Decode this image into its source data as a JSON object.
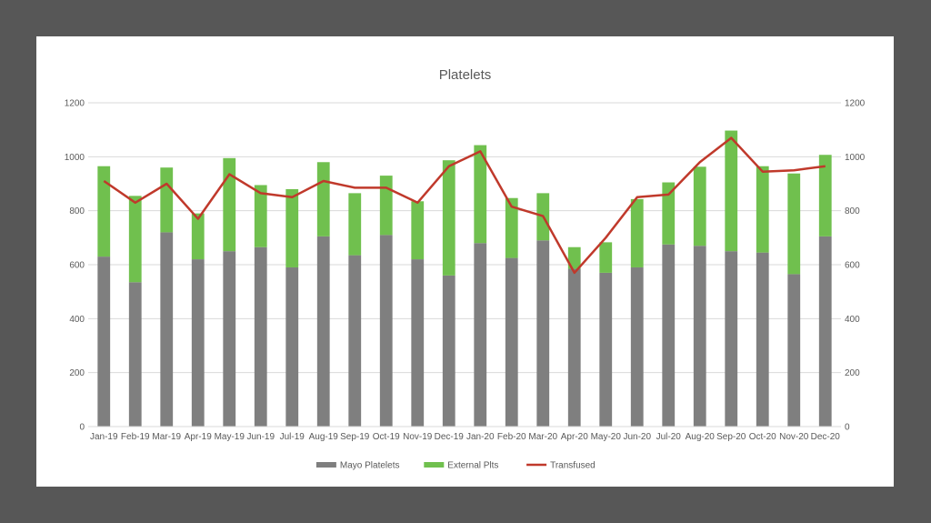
{
  "chart_data": {
    "type": "bar",
    "title": "Platelets",
    "categories": [
      "Jan-19",
      "Feb-19",
      "Mar-19",
      "Apr-19",
      "May-19",
      "Jun-19",
      "Jul-19",
      "Aug-19",
      "Sep-19",
      "Oct-19",
      "Nov-19",
      "Dec-19",
      "Jan-20",
      "Feb-20",
      "Mar-20",
      "Apr-20",
      "May-20",
      "Jun-20",
      "Jul-20",
      "Aug-20",
      "Sep-20",
      "Oct-20",
      "Nov-20",
      "Dec-20"
    ],
    "stacked": true,
    "series": [
      {
        "name": "Mayo Platelets",
        "type": "bar",
        "color": "#7f7f7f",
        "values": [
          630,
          535,
          720,
          620,
          650,
          665,
          590,
          705,
          635,
          710,
          620,
          560,
          680,
          625,
          690,
          585,
          570,
          590,
          675,
          670,
          650,
          645,
          565,
          705
        ]
      },
      {
        "name": "External Plts",
        "type": "bar",
        "color": "#70c04e",
        "values": [
          335,
          320,
          240,
          170,
          345,
          230,
          290,
          275,
          230,
          220,
          215,
          427,
          363,
          222,
          175,
          80,
          113,
          253,
          230,
          293,
          447,
          320,
          373,
          302
        ]
      },
      {
        "name": "Transfused",
        "type": "line",
        "color": "#c0392b",
        "values": [
          910,
          830,
          900,
          770,
          935,
          865,
          850,
          910,
          885,
          885,
          830,
          965,
          1020,
          815,
          780,
          570,
          700,
          850,
          860,
          980,
          1070,
          945,
          950,
          965
        ]
      }
    ],
    "yticks": [
      "0",
      "200",
      "400",
      "600",
      "800",
      "1000",
      "1200"
    ],
    "ylim": [
      0,
      1200
    ],
    "secondary_yticks": [
      "0",
      "200",
      "400",
      "600",
      "800",
      "1000",
      "1200"
    ],
    "grid": true,
    "legend_position": "bottom"
  }
}
